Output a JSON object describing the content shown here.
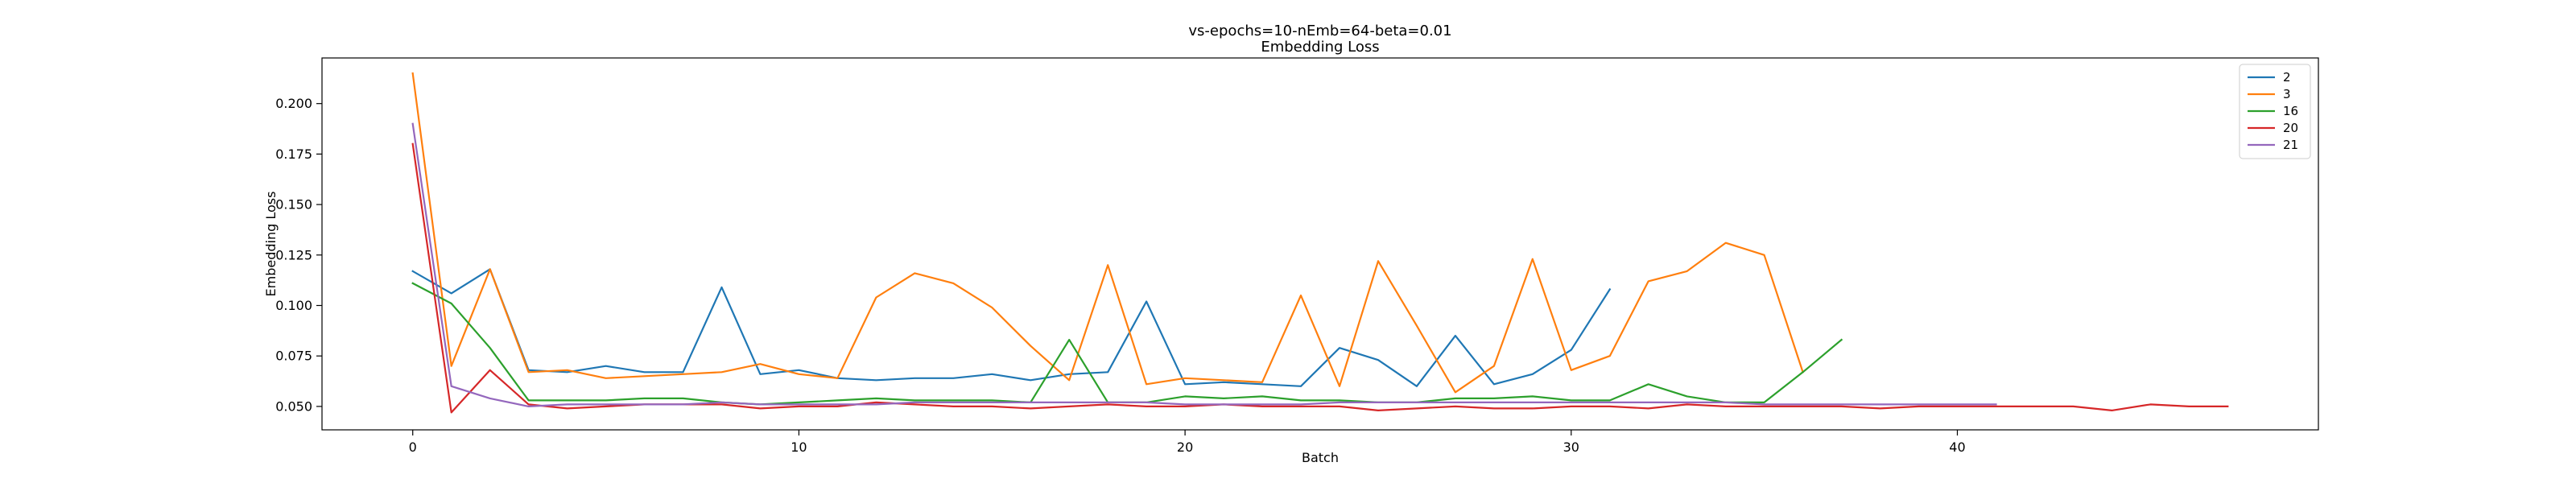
{
  "chart_data": {
    "type": "line",
    "title": "vs-epochs=10-nEmb=64-beta=0.01",
    "subtitle": "Embedding Loss",
    "xlabel": "Batch",
    "ylabel": "Embedding Loss",
    "xlim": [
      -2.35,
      49.35
    ],
    "ylim": [
      0.0384,
      0.2226
    ],
    "xticks": [
      0,
      10,
      20,
      30,
      40
    ],
    "yticks": [
      0.05,
      0.075,
      0.1,
      0.125,
      0.15,
      0.175,
      0.2
    ],
    "yticklabels": [
      "0.050",
      "0.075",
      "0.100",
      "0.125",
      "0.150",
      "0.175",
      "0.200"
    ],
    "grid": false,
    "legend_position": "top-right",
    "series": [
      {
        "name": "2",
        "color": "#1f77b4",
        "values": [
          0.117,
          0.106,
          0.118,
          0.068,
          0.067,
          0.07,
          0.067,
          0.067,
          0.109,
          0.066,
          0.068,
          0.064,
          0.063,
          0.064,
          0.064,
          0.066,
          0.063,
          0.066,
          0.067,
          0.102,
          0.061,
          0.062,
          0.061,
          0.06,
          0.079,
          0.073,
          0.06,
          0.085,
          0.061,
          0.066,
          0.078,
          0.108
        ]
      },
      {
        "name": "3",
        "color": "#ff7f0e",
        "values": [
          0.215,
          0.07,
          0.118,
          0.067,
          0.068,
          0.064,
          0.065,
          0.066,
          0.067,
          0.071,
          0.066,
          0.064,
          0.104,
          0.116,
          0.111,
          0.099,
          0.08,
          0.063,
          0.12,
          0.061,
          0.064,
          0.063,
          0.062,
          0.105,
          0.06,
          0.122,
          0.09,
          0.057,
          0.07,
          0.123,
          0.068,
          0.075,
          0.112,
          0.117,
          0.131,
          0.125,
          0.067
        ]
      },
      {
        "name": "16",
        "color": "#2ca02c",
        "values": [
          0.111,
          0.101,
          0.079,
          0.053,
          0.053,
          0.053,
          0.054,
          0.054,
          0.052,
          0.051,
          0.052,
          0.053,
          0.054,
          0.053,
          0.053,
          0.053,
          0.052,
          0.083,
          0.052,
          0.052,
          0.055,
          0.054,
          0.055,
          0.053,
          0.053,
          0.052,
          0.052,
          0.054,
          0.054,
          0.055,
          0.053,
          0.053,
          0.061,
          0.055,
          0.052,
          0.052,
          0.067,
          0.083
        ]
      },
      {
        "name": "20",
        "color": "#d62728",
        "values": [
          0.18,
          0.047,
          0.068,
          0.051,
          0.049,
          0.05,
          0.051,
          0.051,
          0.051,
          0.049,
          0.05,
          0.05,
          0.052,
          0.051,
          0.05,
          0.05,
          0.049,
          0.05,
          0.051,
          0.05,
          0.05,
          0.051,
          0.05,
          0.05,
          0.05,
          0.048,
          0.049,
          0.05,
          0.049,
          0.049,
          0.05,
          0.05,
          0.049,
          0.051,
          0.05,
          0.05,
          0.05,
          0.05,
          0.049,
          0.05,
          0.05,
          0.05,
          0.05,
          0.05,
          0.048,
          0.051,
          0.05,
          0.05
        ]
      },
      {
        "name": "21",
        "color": "#9467bd",
        "values": [
          0.19,
          0.06,
          0.054,
          0.05,
          0.051,
          0.051,
          0.051,
          0.051,
          0.052,
          0.051,
          0.051,
          0.051,
          0.051,
          0.052,
          0.052,
          0.052,
          0.052,
          0.052,
          0.052,
          0.052,
          0.051,
          0.051,
          0.051,
          0.051,
          0.052,
          0.052,
          0.052,
          0.052,
          0.052,
          0.052,
          0.052,
          0.052,
          0.052,
          0.052,
          0.052,
          0.051,
          0.051,
          0.051,
          0.051,
          0.051,
          0.051,
          0.051
        ]
      }
    ]
  }
}
